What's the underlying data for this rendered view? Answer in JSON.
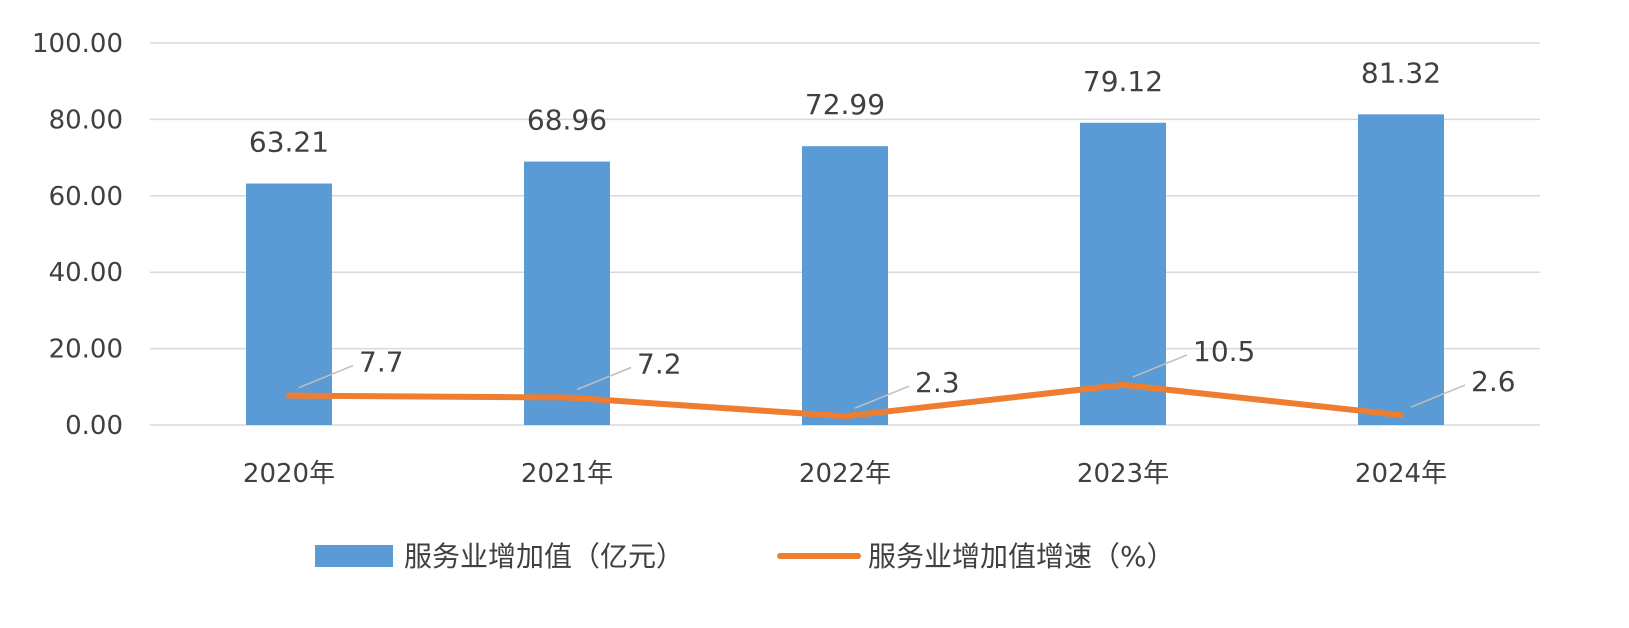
{
  "chart_data": {
    "type": "bar",
    "categories": [
      "2020年",
      "2021年",
      "2022年",
      "2023年",
      "2024年"
    ],
    "y_ticks": [
      "0.00",
      "20.00",
      "40.00",
      "60.00",
      "80.00",
      "100.00"
    ],
    "ylim": [
      0,
      100
    ],
    "grid": true,
    "legend_position": "bottom",
    "series": [
      {
        "name": "服务业增加值（亿元）",
        "type": "bar",
        "color": "#5b9bd5",
        "values": [
          63.21,
          68.96,
          72.99,
          79.12,
          81.32
        ],
        "labels": [
          "63.21",
          "68.96",
          "72.99",
          "79.12",
          "81.32"
        ]
      },
      {
        "name": "服务业增加值增速（%）",
        "type": "line",
        "color": "#ed7d31",
        "values": [
          7.7,
          7.2,
          2.3,
          10.5,
          2.6
        ],
        "labels": [
          "7.7",
          "7.2",
          "2.3",
          "10.5",
          "2.6"
        ]
      }
    ]
  }
}
